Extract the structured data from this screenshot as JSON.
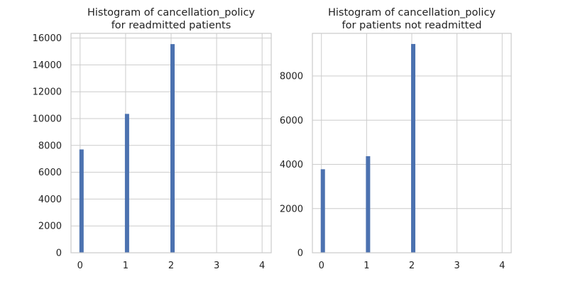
{
  "chart_data": [
    {
      "type": "bar",
      "title": [
        "Histogram of cancellation_policy",
        "for readmitted patients"
      ],
      "xlabel": "",
      "ylabel": "",
      "x": [
        0,
        1,
        2,
        3,
        4
      ],
      "values": [
        7700,
        10350,
        15550,
        0,
        0
      ],
      "xlim": [
        -0.2,
        4.2
      ],
      "ylim": [
        0,
        16350
      ],
      "xticks": [
        0,
        1,
        2,
        3,
        4
      ],
      "yticks": [
        0,
        2000,
        4000,
        6000,
        8000,
        10000,
        12000,
        14000,
        16000
      ],
      "grid": true,
      "color": "#4c72b0"
    },
    {
      "type": "bar",
      "title": [
        "Histogram of cancellation_policy",
        "for patients not readmitted"
      ],
      "xlabel": "",
      "ylabel": "",
      "x": [
        0,
        1,
        2,
        3,
        4
      ],
      "values": [
        3780,
        4370,
        9450,
        0,
        0
      ],
      "xlim": [
        -0.2,
        4.2
      ],
      "ylim": [
        0,
        9930
      ],
      "xticks": [
        0,
        1,
        2,
        3,
        4
      ],
      "yticks": [
        0,
        2000,
        4000,
        6000,
        8000
      ],
      "grid": true,
      "color": "#4c72b0"
    }
  ]
}
